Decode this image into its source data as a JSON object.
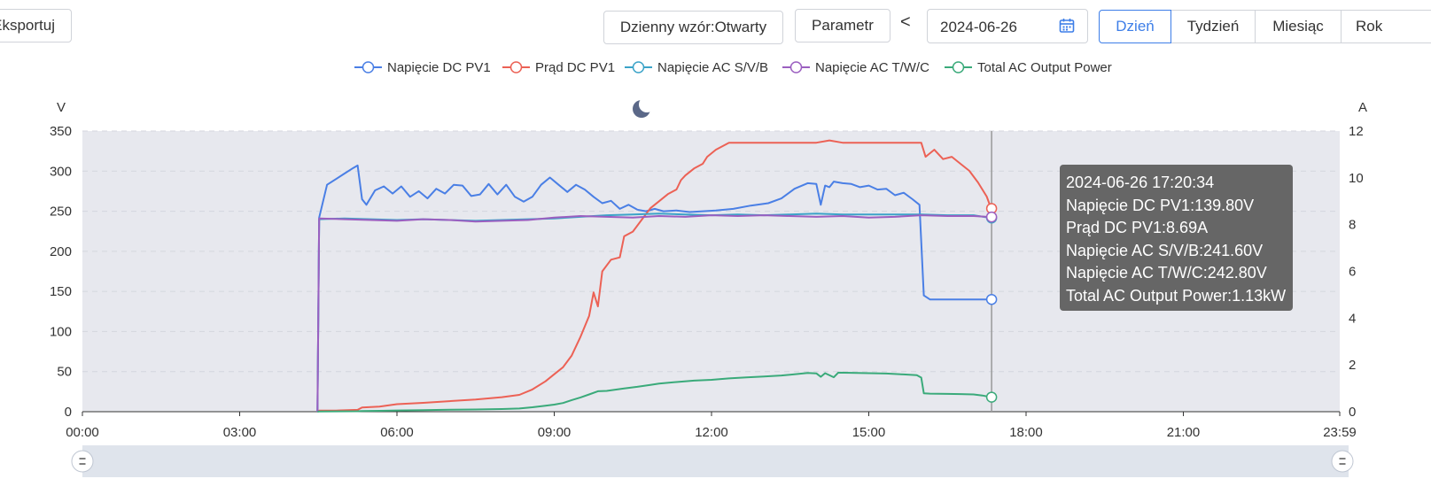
{
  "toolbar": {
    "export_label": "Eksportuj",
    "pattern_label": "Dzienny wzór:Otwarty",
    "parameter_label": "Parametr",
    "prev_label": "<",
    "date_value": "2024-06-26",
    "periods": [
      "Dzień",
      "Tydzień",
      "Miesiąc",
      "Rok"
    ],
    "selected_period": "Dzień"
  },
  "icons": [
    "calendar-icon",
    "moon-icon",
    "slider-handle-icon"
  ],
  "colors": {
    "accent": "#3d7ee8",
    "plot_background": "#e7e8ee",
    "slider_background": "#dfe4ec",
    "tooltip_background": "#666666",
    "cursor_line": "#999999"
  },
  "chart_data": {
    "type": "line",
    "left_axis": {
      "label": "V",
      "ticks": [
        "0",
        "50",
        "100",
        "150",
        "200",
        "250",
        "300",
        "350"
      ],
      "range": [
        0,
        350
      ]
    },
    "right_axis": {
      "label": "A",
      "ticks": [
        "0",
        "2",
        "4",
        "6",
        "8",
        "10",
        "12"
      ],
      "range": [
        0,
        12
      ]
    },
    "x_axis": {
      "ticks": [
        "00:00",
        "03:00",
        "06:00",
        "09:00",
        "12:00",
        "15:00",
        "18:00",
        "21:00",
        "23:59"
      ],
      "range": [
        "00:00",
        "23:59"
      ]
    },
    "grid": "horizontal dashed",
    "legend_position": "top-center",
    "series": [
      {
        "name": "Napięcie DC PV1",
        "color": "#4a7fe5",
        "axis": "left",
        "points": [
          [
            "04:29",
            0
          ],
          [
            "04:31",
            242
          ],
          [
            "04:40",
            283
          ],
          [
            "05:00",
            297
          ],
          [
            "05:10",
            304
          ],
          [
            "05:15",
            307
          ],
          [
            "05:20",
            265
          ],
          [
            "05:25",
            258
          ],
          [
            "05:35",
            276
          ],
          [
            "05:45",
            281
          ],
          [
            "05:55",
            272
          ],
          [
            "06:05",
            281
          ],
          [
            "06:15",
            268
          ],
          [
            "06:25",
            275
          ],
          [
            "06:35",
            266
          ],
          [
            "06:45",
            278
          ],
          [
            "06:55",
            272
          ],
          [
            "07:05",
            283
          ],
          [
            "07:15",
            282
          ],
          [
            "07:25",
            269
          ],
          [
            "07:35",
            271
          ],
          [
            "07:45",
            284
          ],
          [
            "07:55",
            271
          ],
          [
            "08:05",
            283
          ],
          [
            "08:15",
            268
          ],
          [
            "08:25",
            262
          ],
          [
            "08:35",
            268
          ],
          [
            "08:45",
            283
          ],
          [
            "08:55",
            292
          ],
          [
            "09:05",
            283
          ],
          [
            "09:15",
            274
          ],
          [
            "09:25",
            283
          ],
          [
            "09:35",
            277
          ],
          [
            "09:45",
            268
          ],
          [
            "09:55",
            260
          ],
          [
            "10:05",
            263
          ],
          [
            "10:15",
            253
          ],
          [
            "10:25",
            258
          ],
          [
            "10:35",
            252
          ],
          [
            "10:45",
            250
          ],
          [
            "10:55",
            253
          ],
          [
            "11:05",
            250
          ],
          [
            "11:20",
            251
          ],
          [
            "11:35",
            249
          ],
          [
            "11:50",
            250
          ],
          [
            "12:05",
            251
          ],
          [
            "12:25",
            253
          ],
          [
            "12:45",
            257
          ],
          [
            "13:05",
            260
          ],
          [
            "13:20",
            266
          ],
          [
            "13:35",
            278
          ],
          [
            "13:50",
            285
          ],
          [
            "14:00",
            284
          ],
          [
            "14:05",
            258
          ],
          [
            "14:10",
            282
          ],
          [
            "14:15",
            280
          ],
          [
            "14:20",
            287
          ],
          [
            "14:30",
            285
          ],
          [
            "14:40",
            284
          ],
          [
            "14:50",
            280
          ],
          [
            "15:00",
            282
          ],
          [
            "15:10",
            277
          ],
          [
            "15:20",
            278
          ],
          [
            "15:30",
            270
          ],
          [
            "15:40",
            273
          ],
          [
            "15:50",
            265
          ],
          [
            "15:58",
            258
          ],
          [
            "16:03",
            145
          ],
          [
            "16:10",
            140
          ],
          [
            "16:25",
            140
          ],
          [
            "16:40",
            140
          ],
          [
            "16:55",
            140
          ],
          [
            "17:10",
            140
          ],
          [
            "17:20",
            140
          ]
        ]
      },
      {
        "name": "Prąd DC PV1",
        "color": "#ec6155",
        "axis": "right",
        "points": [
          [
            "04:29",
            0
          ],
          [
            "04:31",
            0.05
          ],
          [
            "04:50",
            0.05
          ],
          [
            "05:15",
            0.08
          ],
          [
            "05:20",
            0.18
          ],
          [
            "05:40",
            0.22
          ],
          [
            "06:00",
            0.32
          ],
          [
            "06:30",
            0.38
          ],
          [
            "07:00",
            0.45
          ],
          [
            "07:30",
            0.52
          ],
          [
            "08:00",
            0.62
          ],
          [
            "08:20",
            0.72
          ],
          [
            "08:35",
            0.95
          ],
          [
            "08:50",
            1.3
          ],
          [
            "09:00",
            1.6
          ],
          [
            "09:10",
            1.9
          ],
          [
            "09:20",
            2.4
          ],
          [
            "09:30",
            3.2
          ],
          [
            "09:40",
            4.1
          ],
          [
            "09:45",
            5.1
          ],
          [
            "09:50",
            4.5
          ],
          [
            "09:55",
            6.0
          ],
          [
            "10:05",
            6.5
          ],
          [
            "10:15",
            6.6
          ],
          [
            "10:20",
            7.5
          ],
          [
            "10:30",
            7.7
          ],
          [
            "10:40",
            8.2
          ],
          [
            "10:50",
            8.7
          ],
          [
            "11:00",
            9.0
          ],
          [
            "11:10",
            9.3
          ],
          [
            "11:20",
            9.5
          ],
          [
            "11:25",
            9.9
          ],
          [
            "11:30",
            10.1
          ],
          [
            "11:40",
            10.4
          ],
          [
            "11:50",
            10.6
          ],
          [
            "11:55",
            10.9
          ],
          [
            "12:05",
            11.2
          ],
          [
            "12:20",
            11.5
          ],
          [
            "12:35",
            11.5
          ],
          [
            "13:00",
            11.5
          ],
          [
            "13:30",
            11.5
          ],
          [
            "14:00",
            11.5
          ],
          [
            "14:15",
            11.6
          ],
          [
            "14:30",
            11.5
          ],
          [
            "15:00",
            11.5
          ],
          [
            "15:30",
            11.5
          ],
          [
            "15:50",
            11.5
          ],
          [
            "16:00",
            11.5
          ],
          [
            "16:05",
            10.9
          ],
          [
            "16:15",
            11.2
          ],
          [
            "16:25",
            10.8
          ],
          [
            "16:35",
            10.9
          ],
          [
            "16:45",
            10.6
          ],
          [
            "16:55",
            10.3
          ],
          [
            "17:05",
            9.8
          ],
          [
            "17:15",
            9.2
          ],
          [
            "17:20",
            8.69
          ]
        ]
      },
      {
        "name": "Napięcie AC S/V/B",
        "color": "#3ba3c8",
        "axis": "left",
        "points": [
          [
            "04:29",
            0
          ],
          [
            "04:31",
            240
          ],
          [
            "05:00",
            241
          ],
          [
            "05:30",
            240
          ],
          [
            "06:00",
            239
          ],
          [
            "06:30",
            240
          ],
          [
            "07:00",
            239
          ],
          [
            "07:30",
            238
          ],
          [
            "08:00",
            239
          ],
          [
            "08:30",
            240
          ],
          [
            "09:00",
            241
          ],
          [
            "09:30",
            243
          ],
          [
            "10:00",
            245
          ],
          [
            "10:30",
            246
          ],
          [
            "11:00",
            247
          ],
          [
            "11:30",
            246
          ],
          [
            "12:00",
            245
          ],
          [
            "12:30",
            246
          ],
          [
            "13:00",
            245
          ],
          [
            "13:30",
            246
          ],
          [
            "14:00",
            247
          ],
          [
            "14:30",
            246
          ],
          [
            "15:00",
            246
          ],
          [
            "15:30",
            246
          ],
          [
            "16:00",
            246
          ],
          [
            "16:30",
            245
          ],
          [
            "17:00",
            245
          ],
          [
            "17:20",
            241.6
          ]
        ]
      },
      {
        "name": "Napięcie AC T/W/C",
        "color": "#9b5fc0",
        "axis": "left",
        "points": [
          [
            "04:29",
            0
          ],
          [
            "04:31",
            241
          ],
          [
            "05:00",
            240
          ],
          [
            "05:30",
            239
          ],
          [
            "06:00",
            238
          ],
          [
            "06:30",
            240
          ],
          [
            "07:00",
            239
          ],
          [
            "07:30",
            237
          ],
          [
            "08:00",
            238
          ],
          [
            "08:30",
            239
          ],
          [
            "09:00",
            242
          ],
          [
            "09:30",
            244
          ],
          [
            "10:00",
            243
          ],
          [
            "10:30",
            242
          ],
          [
            "11:00",
            244
          ],
          [
            "11:30",
            243
          ],
          [
            "12:00",
            245
          ],
          [
            "12:30",
            244
          ],
          [
            "13:00",
            245
          ],
          [
            "13:30",
            244
          ],
          [
            "14:00",
            243
          ],
          [
            "14:30",
            244
          ],
          [
            "15:00",
            242
          ],
          [
            "15:30",
            243
          ],
          [
            "16:00",
            245
          ],
          [
            "16:30",
            244
          ],
          [
            "17:00",
            244
          ],
          [
            "17:20",
            242.8
          ]
        ]
      },
      {
        "name": "Total AC Output Power",
        "color": "#3aaa7a",
        "axis": "left",
        "points": [
          [
            "04:29",
            0
          ],
          [
            "04:31",
            0.2
          ],
          [
            "05:15",
            0.5
          ],
          [
            "05:20",
            0.8
          ],
          [
            "05:40",
            1.1
          ],
          [
            "06:00",
            1.5
          ],
          [
            "06:30",
            1.9
          ],
          [
            "07:00",
            2.4
          ],
          [
            "07:30",
            2.8
          ],
          [
            "08:00",
            3.3
          ],
          [
            "08:20",
            4.0
          ],
          [
            "08:35",
            5.5
          ],
          [
            "08:50",
            7.5
          ],
          [
            "09:00",
            8.8
          ],
          [
            "09:10",
            10.8
          ],
          [
            "09:20",
            14.5
          ],
          [
            "09:30",
            17.8
          ],
          [
            "09:40",
            21.5
          ],
          [
            "09:50",
            25.5
          ],
          [
            "10:00",
            26.0
          ],
          [
            "10:10",
            27.5
          ],
          [
            "10:20",
            29.0
          ],
          [
            "10:35",
            31.0
          ],
          [
            "10:50",
            33.5
          ],
          [
            "11:00",
            35.0
          ],
          [
            "11:20",
            37.0
          ],
          [
            "11:40",
            38.8
          ],
          [
            "12:00",
            39.8
          ],
          [
            "12:20",
            41.5
          ],
          [
            "12:40",
            42.8
          ],
          [
            "13:00",
            43.8
          ],
          [
            "13:20",
            45.2
          ],
          [
            "13:40",
            47.2
          ],
          [
            "13:50",
            48.3
          ],
          [
            "14:00",
            47.8
          ],
          [
            "14:05",
            43.5
          ],
          [
            "14:10",
            48.0
          ],
          [
            "14:20",
            43.0
          ],
          [
            "14:25",
            48.7
          ],
          [
            "14:40",
            48.5
          ],
          [
            "15:00",
            48.0
          ],
          [
            "15:20",
            47.6
          ],
          [
            "15:40",
            46.5
          ],
          [
            "15:55",
            45.5
          ],
          [
            "16:00",
            42.5
          ],
          [
            "16:03",
            23.0
          ],
          [
            "16:10",
            22.5
          ],
          [
            "16:30",
            22.2
          ],
          [
            "16:45",
            22.0
          ],
          [
            "17:00",
            21.5
          ],
          [
            "17:10",
            20.2
          ],
          [
            "17:20",
            18.1
          ]
        ],
        "scale_note_value_at_cursor": "1.13kW"
      }
    ],
    "cursor": {
      "time": "17:20:34",
      "tooltip_lines": [
        "2024-06-26 17:20:34",
        "Napięcie DC PV1:139.80V",
        "Prąd DC PV1:8.69A",
        "Napięcie AC S/V/B:241.60V",
        "Napięcie AC T/W/C:242.80V",
        "Total AC Output Power:1.13kW"
      ]
    }
  }
}
